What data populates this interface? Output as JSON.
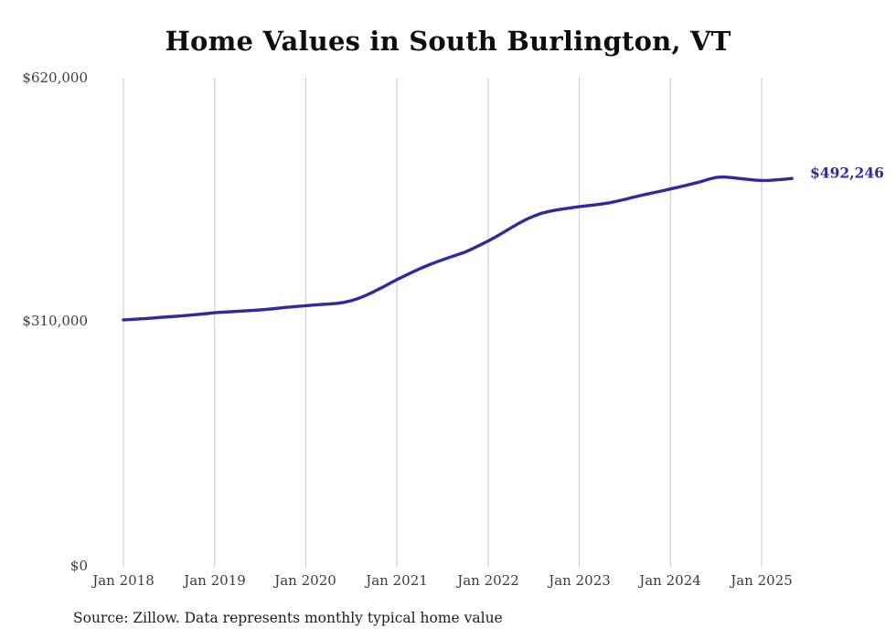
{
  "chart_data": {
    "type": "line",
    "title": "Home Values in South Burlington, VT",
    "source": "Source: Zillow. Data represents monthly typical home value",
    "xlabel": "",
    "ylabel": "",
    "ylim": [
      0,
      620000
    ],
    "grid": "vertical-yearly-gridlines",
    "legend": "none",
    "line_color": "#2e2aa0",
    "gridline_color": "#c9c9c9",
    "end_label": "$492,246",
    "end_value": 492246,
    "start_month": "Jan 2018",
    "end_month": "May 2025",
    "y_ticks": [
      {
        "label": "$0",
        "value": 0
      },
      {
        "label": "$310,000",
        "value": 310000
      },
      {
        "label": "$620,000",
        "value": 620000
      }
    ],
    "x_tick_labels": [
      "Jan 2018",
      "Jan 2019",
      "Jan 2020",
      "Jan 2021",
      "Jan 2022",
      "Jan 2023",
      "Jan 2024",
      "Jan 2025"
    ],
    "series": [
      {
        "name": "Typical home value (monthly)",
        "values": [
          313000,
          313600,
          314200,
          314800,
          315500,
          316200,
          316900,
          317600,
          318400,
          319200,
          320100,
          321000,
          322000,
          322600,
          323200,
          323800,
          324400,
          325000,
          325700,
          326500,
          327400,
          328400,
          329300,
          330200,
          331000,
          331800,
          332500,
          333100,
          333900,
          335200,
          337400,
          340500,
          344400,
          348900,
          353800,
          359000,
          364000,
          368800,
          373400,
          377800,
          381900,
          385700,
          389200,
          392500,
          395700,
          399000,
          403400,
          408200,
          413000,
          418200,
          423800,
          429600,
          435200,
          440200,
          444400,
          448000,
          450500,
          452300,
          453800,
          455200,
          456500,
          457600,
          458700,
          460000,
          461500,
          463500,
          465800,
          468200,
          470500,
          472600,
          474700,
          476800,
          479000,
          481200,
          483400,
          485800,
          488200,
          491200,
          493600,
          494200,
          493500,
          492300,
          491200,
          490300,
          489800,
          489900,
          490500,
          491300,
          492246
        ]
      }
    ]
  }
}
